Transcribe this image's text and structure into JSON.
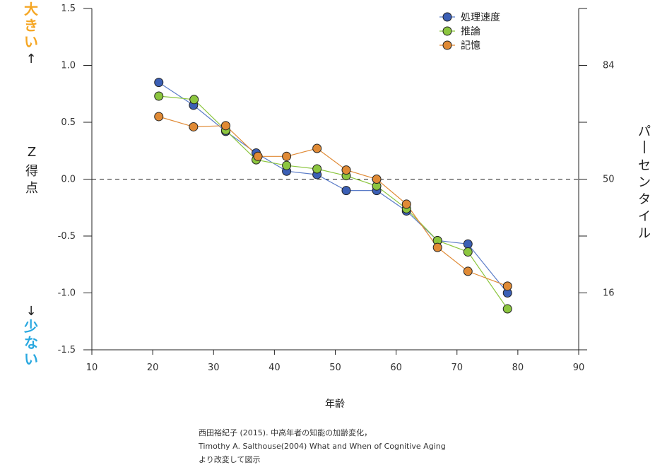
{
  "left_label_top": "大きい↑",
  "left_label_bottom": "↓少ない",
  "left_label_top_color": "#f5a623",
  "left_label_bottom_color": "#29a8e0",
  "left_axis_title": [
    "Z",
    "得点"
  ],
  "right_axis_title": [
    "パ",
    "ー",
    "セ",
    "ン",
    "タ",
    "イ",
    "ル"
  ],
  "source_lines": [
    "西田裕紀子 (2015). 中高年者の知能の加齢変化，",
    "Timothy A. Salthouse(2004) What and When of Cognitive Aging",
    "より改変して図示"
  ],
  "chart_data": {
    "type": "line",
    "xlabel": "年齢",
    "ylabel": "Z得点",
    "y2label": "パーセンタイル",
    "xlim": [
      10,
      90
    ],
    "ylim": [
      -1.5,
      1.5
    ],
    "xticks": [
      "10",
      "20",
      "30",
      "40",
      "50",
      "60",
      "70",
      "80",
      "90"
    ],
    "yticks": [
      "1.5",
      "1.0",
      "0.5",
      "0.0",
      "-0.5",
      "-1.0",
      "-1.5"
    ],
    "y2ticks": [
      {
        "z": 1.0,
        "label": "84"
      },
      {
        "z": 0.0,
        "label": "50"
      },
      {
        "z": -1.0,
        "label": "16"
      }
    ],
    "y2minor": [
      0.5,
      -0.5
    ],
    "reference_line": 0.0,
    "legend_position": "top-right",
    "series": [
      {
        "name": "処理速度",
        "color": "#3b5fb5",
        "line_color": "#5b7cc8",
        "points": [
          [
            21,
            0.85
          ],
          [
            26.7,
            0.65
          ],
          [
            32,
            0.42
          ],
          [
            37,
            0.23
          ],
          [
            42,
            0.07
          ],
          [
            47,
            0.04
          ],
          [
            51.8,
            -0.1
          ],
          [
            56.8,
            -0.1
          ],
          [
            61.7,
            -0.28
          ],
          [
            66.8,
            -0.54
          ],
          [
            71.8,
            -0.57
          ],
          [
            78.3,
            -1.0
          ]
        ]
      },
      {
        "name": "推論",
        "color": "#8cc63f",
        "line_color": "#8cc63f",
        "points": [
          [
            21,
            0.73
          ],
          [
            26.8,
            0.7
          ],
          [
            32,
            0.43
          ],
          [
            37,
            0.17
          ],
          [
            42,
            0.12
          ],
          [
            47,
            0.09
          ],
          [
            51.8,
            0.03
          ],
          [
            56.8,
            -0.06
          ],
          [
            61.7,
            -0.26
          ],
          [
            66.8,
            -0.54
          ],
          [
            71.8,
            -0.64
          ],
          [
            78.3,
            -1.14
          ]
        ]
      },
      {
        "name": "記憶",
        "color": "#e08a35",
        "line_color": "#e08a35",
        "points": [
          [
            21,
            0.55
          ],
          [
            26.7,
            0.46
          ],
          [
            32,
            0.47
          ],
          [
            37.3,
            0.2
          ],
          [
            42,
            0.2
          ],
          [
            47,
            0.27
          ],
          [
            51.8,
            0.08
          ],
          [
            56.8,
            0.0
          ],
          [
            61.7,
            -0.22
          ],
          [
            66.8,
            -0.6
          ],
          [
            71.8,
            -0.81
          ],
          [
            78.3,
            -0.94
          ]
        ]
      }
    ]
  }
}
